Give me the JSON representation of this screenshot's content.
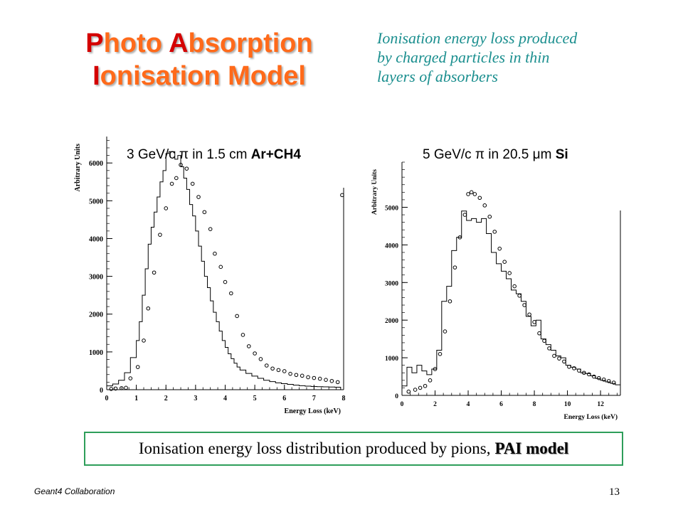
{
  "slide": {
    "title_line1_cap1": "P",
    "title_line1_rest1": "hoto ",
    "title_line1_cap2": "A",
    "title_line1_rest2": "bsorption",
    "title_line2_cap": "I",
    "title_line2_rest": "onisation Model",
    "subtitle_line1": "Ionisation energy loss produced",
    "subtitle_line2": "by charged particles in thin",
    "subtitle_line3": "layers of  absorbers",
    "caption_text": "Ionisation energy loss distribution produced by pions, ",
    "caption_bold": "PAI model",
    "footer_left": "Geant4 Collaboration",
    "page_number": "13"
  },
  "chart_data": [
    {
      "type": "histogram+scatter",
      "title_plain": "3 GeV/c π in 1.5 cm ",
      "title_bold": "Ar+CH4",
      "xlabel": "Energy Loss (keV)",
      "ylabel": "Arbitrary Units",
      "xlim": [
        0,
        8
      ],
      "ylim": [
        0,
        6700
      ],
      "xticks": [
        "0",
        "1",
        "2",
        "3",
        "4",
        "5",
        "6",
        "7",
        "8"
      ],
      "yticks": [
        "0",
        "1000",
        "2000",
        "3000",
        "4000",
        "5000",
        "6000"
      ],
      "histogram": {
        "edges": [
          0,
          0.2,
          0.4,
          0.6,
          0.8,
          1.0,
          1.1,
          1.2,
          1.3,
          1.4,
          1.5,
          1.6,
          1.7,
          1.8,
          1.9,
          2.0,
          2.1,
          2.2,
          2.3,
          2.4,
          2.5,
          2.6,
          2.7,
          2.8,
          2.9,
          3.0,
          3.1,
          3.2,
          3.3,
          3.4,
          3.5,
          3.6,
          3.7,
          3.8,
          3.9,
          4.0,
          4.1,
          4.2,
          4.3,
          4.4,
          4.5,
          4.7,
          4.9,
          5.1,
          5.3,
          5.5,
          5.7,
          5.9,
          6.1,
          6.3,
          6.5,
          6.7,
          6.9,
          7.1,
          7.3,
          7.5,
          7.7,
          7.9
        ],
        "values": [
          100,
          150,
          250,
          450,
          850,
          1300,
          1800,
          2500,
          3200,
          3850,
          4300,
          4700,
          5100,
          5500,
          5800,
          6250,
          6300,
          6300,
          6100,
          6200,
          5900,
          5600,
          5300,
          4900,
          4600,
          4200,
          3800,
          3400,
          3000,
          2700,
          2350,
          2050,
          1800,
          1550,
          1300,
          1120,
          950,
          820,
          700,
          600,
          520,
          430,
          360,
          300,
          250,
          215,
          180,
          160,
          140,
          120,
          105,
          95,
          85,
          80,
          75,
          70,
          65
        ]
      },
      "points": {
        "x": [
          0.15,
          0.3,
          0.5,
          0.65,
          0.8,
          1.05,
          1.25,
          1.4,
          1.6,
          1.8,
          2.0,
          2.2,
          2.35,
          2.5,
          2.7,
          2.9,
          3.1,
          3.3,
          3.5,
          3.65,
          3.85,
          4.0,
          4.2,
          4.4,
          4.6,
          4.8,
          5.0,
          5.2,
          5.4,
          5.6,
          5.8,
          6.0,
          6.2,
          6.4,
          6.6,
          6.8,
          7.0,
          7.2,
          7.4,
          7.6,
          7.8,
          7.95
        ],
        "y": [
          20,
          30,
          40,
          50,
          300,
          600,
          1300,
          2150,
          3100,
          4100,
          4800,
          5450,
          5600,
          5950,
          5850,
          5450,
          5100,
          4700,
          4250,
          3600,
          3250,
          2850,
          2550,
          1950,
          1450,
          1150,
          960,
          810,
          640,
          560,
          520,
          490,
          420,
          390,
          370,
          330,
          310,
          290,
          260,
          230,
          200,
          5150
        ]
      }
    },
    {
      "type": "histogram+scatter",
      "title_plain": "5 GeV/c π in 20.5 μm ",
      "title_bold": "Si",
      "xlabel": "Energy Loss (keV)",
      "ylabel": "Arbitrary Units",
      "xlim": [
        0,
        13.2
      ],
      "ylim": [
        0,
        6200
      ],
      "xticks": [
        "0",
        "2",
        "4",
        "6",
        "8",
        "10",
        "12"
      ],
      "yticks": [
        "0",
        "1000",
        "2000",
        "3000",
        "4000",
        "5000"
      ],
      "histogram": {
        "edges": [
          0,
          0.3,
          0.6,
          0.9,
          1.2,
          1.5,
          1.8,
          2.1,
          2.4,
          2.7,
          3.0,
          3.3,
          3.6,
          3.9,
          4.2,
          4.5,
          4.8,
          5.1,
          5.4,
          5.7,
          6.0,
          6.3,
          6.6,
          6.9,
          7.2,
          7.5,
          7.8,
          8.1,
          8.4,
          8.7,
          9.0,
          9.3,
          9.6,
          9.9,
          10.2,
          10.5,
          10.8,
          11.1,
          11.4,
          11.7,
          12.0,
          12.3,
          12.6,
          12.9,
          13.2
        ],
        "values": [
          250,
          750,
          600,
          800,
          650,
          550,
          700,
          1200,
          2500,
          2900,
          3850,
          4200,
          4900,
          4650,
          4700,
          4600,
          4700,
          4300,
          3800,
          3500,
          3300,
          3100,
          2800,
          2700,
          2500,
          2100,
          1850,
          2000,
          1500,
          1350,
          1200,
          1050,
          1000,
          800,
          750,
          700,
          600,
          580,
          520,
          450,
          400,
          360,
          320,
          280
        ]
      },
      "points": {
        "x": [
          0.4,
          0.8,
          1.1,
          1.4,
          1.7,
          2.0,
          2.3,
          2.6,
          2.9,
          3.2,
          3.5,
          3.8,
          4.0,
          4.2,
          4.4,
          4.7,
          5.0,
          5.3,
          5.6,
          5.9,
          6.2,
          6.5,
          6.8,
          7.1,
          7.4,
          7.7,
          8.0,
          8.3,
          8.6,
          8.9,
          9.2,
          9.5,
          9.8,
          10.1,
          10.4,
          10.7,
          11.0,
          11.3,
          11.6,
          11.9,
          12.2,
          12.5,
          12.8
        ],
        "y": [
          100,
          150,
          200,
          250,
          400,
          700,
          1100,
          1700,
          2500,
          3400,
          4200,
          4800,
          5350,
          5400,
          5350,
          5250,
          5050,
          4750,
          4350,
          3900,
          3550,
          3250,
          2900,
          2650,
          2400,
          2150,
          1950,
          1650,
          1450,
          1250,
          1050,
          980,
          900,
          760,
          720,
          660,
          600,
          560,
          500,
          460,
          420,
          380,
          340
        ]
      }
    }
  ]
}
